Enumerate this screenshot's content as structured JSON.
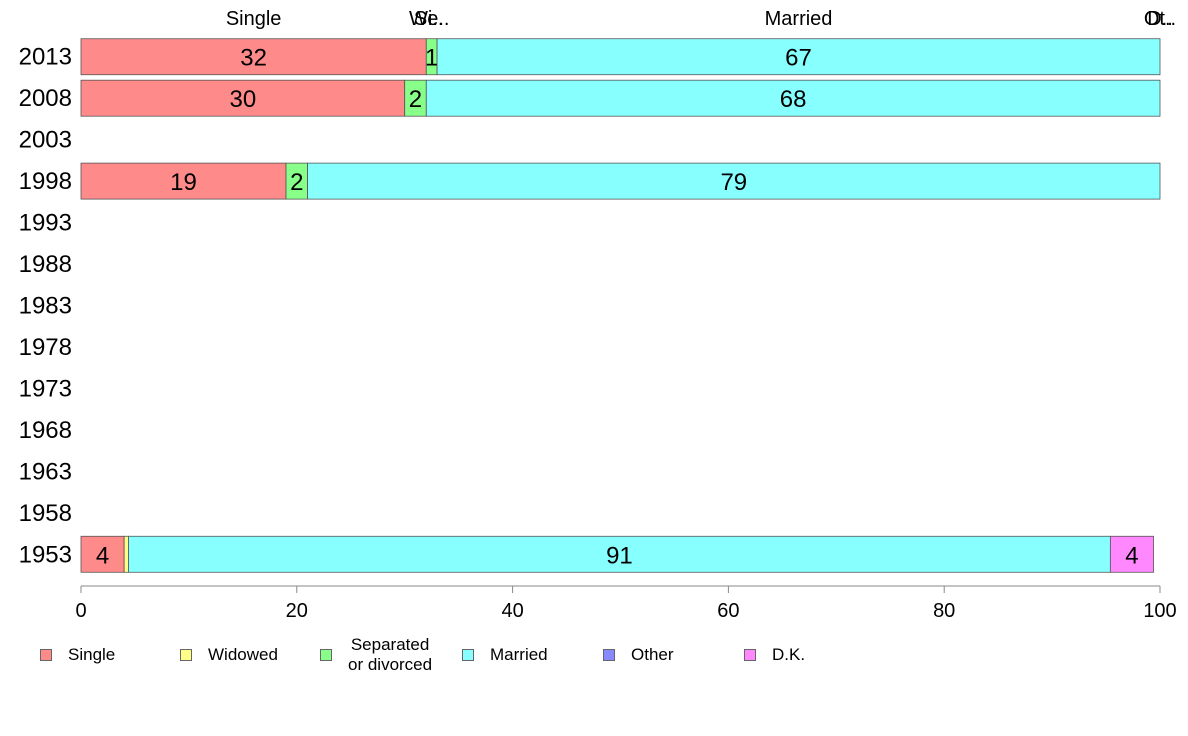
{
  "chart_data": {
    "type": "bar",
    "orientation": "horizontal",
    "stacked": true,
    "xlim": [
      0,
      100
    ],
    "x_ticks": [
      0,
      20,
      40,
      60,
      80,
      100
    ],
    "categories": [
      "2013",
      "2008",
      "2003",
      "1998",
      "1993",
      "1988",
      "1983",
      "1978",
      "1973",
      "1968",
      "1963",
      "1958",
      "1953"
    ],
    "top_labels": [
      "Single",
      "Wi..",
      "Se..",
      "Married",
      "Ot..",
      "D.."
    ],
    "series": [
      {
        "name": "Single",
        "color": "#ff8a8a",
        "values": [
          32,
          30,
          null,
          19,
          null,
          null,
          null,
          null,
          null,
          null,
          null,
          null,
          4
        ]
      },
      {
        "name": "Widowed",
        "color": "#ffff88",
        "values": [
          0,
          0,
          null,
          0,
          null,
          null,
          null,
          null,
          null,
          null,
          null,
          null,
          0.4
        ]
      },
      {
        "name": "Separated\n or divorced",
        "color": "#88ff88",
        "values": [
          1,
          2,
          null,
          2,
          null,
          null,
          null,
          null,
          null,
          null,
          null,
          null,
          0
        ]
      },
      {
        "name": "Married",
        "color": "#88ffff",
        "values": [
          67,
          68,
          null,
          79,
          null,
          null,
          null,
          null,
          null,
          null,
          null,
          null,
          91
        ]
      },
      {
        "name": "Other",
        "color": "#8888ff",
        "values": [
          0,
          0,
          null,
          0,
          null,
          null,
          null,
          null,
          null,
          null,
          null,
          null,
          0
        ]
      },
      {
        "name": "D.K.",
        "color": "#ff88ff",
        "values": [
          0,
          0,
          null,
          0,
          null,
          null,
          null,
          null,
          null,
          null,
          null,
          null,
          4
        ]
      }
    ],
    "legend_position": "bottom",
    "grid": false
  }
}
